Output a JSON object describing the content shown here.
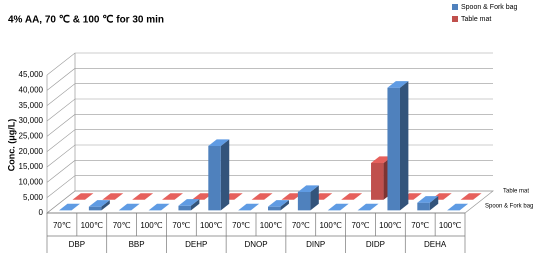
{
  "chart_data": {
    "type": "bar3d",
    "title": "4% AA, 70 ℃ & 100 ℃ for 30 min",
    "y_label": "Conc. (μg/L)",
    "categories": [
      "70℃",
      "100℃",
      "70℃",
      "100℃",
      "70℃",
      "100℃",
      "70℃",
      "100℃",
      "70℃",
      "100℃",
      "70℃",
      "100℃",
      "70℃",
      "100℃"
    ],
    "groups": [
      "DBP",
      "BBP",
      "DEHP",
      "DNOP",
      "DINP",
      "DIDP",
      "DEHA"
    ],
    "series": [
      {
        "name": "Spoon & Fork bag",
        "color": "#4f81bd",
        "values": [
          0,
          1200,
          0,
          0,
          1500,
          21000,
          0,
          1200,
          6000,
          0,
          0,
          40000,
          2500,
          0
        ]
      },
      {
        "name": "Table mat",
        "color": "#c0504d",
        "values": [
          0,
          0,
          0,
          0,
          0,
          0,
          0,
          0,
          0,
          0,
          12000,
          0,
          0,
          0
        ]
      }
    ],
    "ylim": [
      0,
      45000
    ],
    "yticks": [
      0,
      {
        "value": 5000,
        "label": "5,000"
      },
      {
        "value": 10000,
        "label": "10,000"
      },
      {
        "value": 15000,
        "label": "15,000"
      },
      {
        "value": 20000,
        "label": "20,000"
      },
      {
        "value": 25000,
        "label": "25,000"
      },
      {
        "value": 30000,
        "label": "30,000"
      },
      {
        "value": 35000,
        "label": "35,000"
      },
      {
        "value": 40000,
        "label": "40,000"
      },
      {
        "value": 45000,
        "label": "45,000"
      }
    ],
    "grid": true,
    "legend": "top-right"
  }
}
